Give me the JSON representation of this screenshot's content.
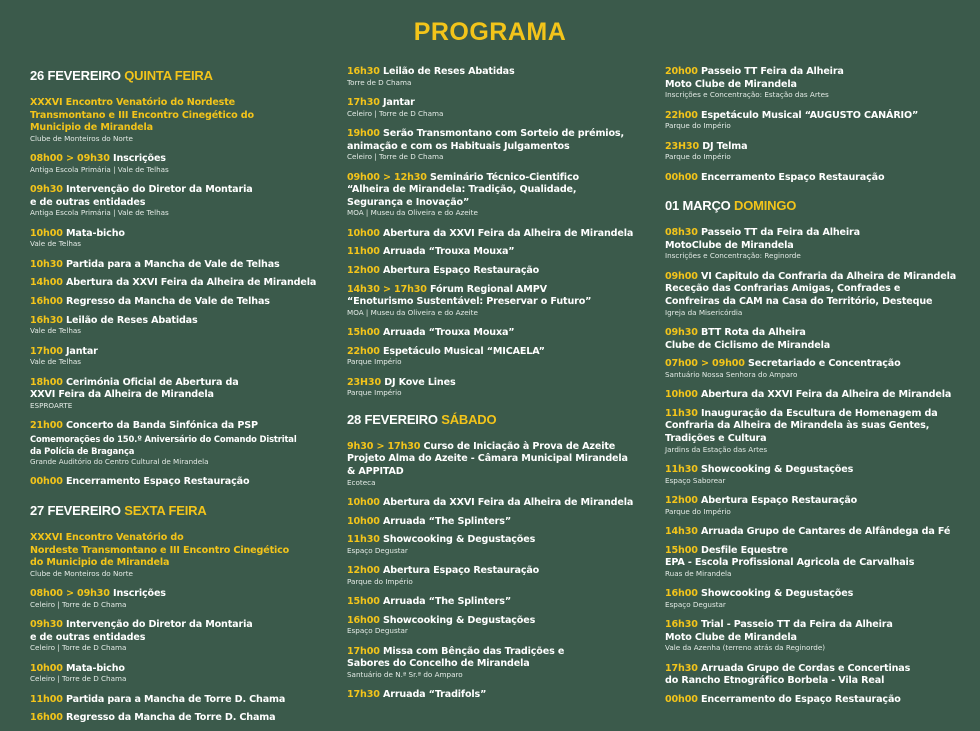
{
  "title": "PROGRAMA",
  "colors": {
    "background": "#3b5a4b",
    "accent": "#f3c41a",
    "text": "#ffffff"
  },
  "columns": [
    [
      {
        "type": "day",
        "date": "26 FEVEREIRO",
        "weekday": "QUINTA FEIRA"
      },
      {
        "highlight": true,
        "lines": [
          "XXXVI Encontro Venatório do Nordeste",
          "Transmontano e III Encontro Cinegético do",
          "Municipio de Mirandela"
        ],
        "sub": "Clube de Monteiros do Norte"
      },
      {
        "time": "08h00 > 09h30",
        "lines": [
          "Inscrições"
        ],
        "sub": "Antiga Escola Primária | Vale de Telhas"
      },
      {
        "time": "09h30",
        "lines": [
          "Intervenção do Diretor da Montaria",
          "e de outras entidades"
        ],
        "sub": "Antiga Escola Primária | Vale de Telhas"
      },
      {
        "time": "10h00",
        "lines": [
          "Mata-bicho"
        ],
        "sub": "Vale de Telhas"
      },
      {
        "time": "10h30",
        "lines": [
          "Partida para a Mancha de Vale de Telhas"
        ]
      },
      {
        "time": "14h00",
        "lines": [
          "Abertura da XXVI Feira da Alheira de Mirandela"
        ]
      },
      {
        "time": "16h00",
        "lines": [
          "Regresso da Mancha de Vale de Telhas"
        ]
      },
      {
        "time": "16h30",
        "lines": [
          "Leilão de Reses Abatidas"
        ],
        "sub": "Vale de Telhas"
      },
      {
        "time": "17h00",
        "lines": [
          "Jantar"
        ],
        "sub": "Vale de Telhas"
      },
      {
        "time": "18h00",
        "lines": [
          "Cerimónia Oficial de Abertura da",
          "XXVI Feira da Alheira de Mirandela"
        ],
        "sub": "ESPROARTE"
      },
      {
        "time": "21h00",
        "lines": [
          "Concerto da Banda Sinfónica da PSP"
        ],
        "small": [
          "Comemorações do 150.º Aniversário do Comando Distrital",
          "da Polícia de Bragança"
        ],
        "sub": "Grande Auditório do Centro Cultural de Mirandela"
      },
      {
        "time": "00h00",
        "lines": [
          "Encerramento Espaço Restauração"
        ]
      },
      {
        "type": "day",
        "date": "27 FEVEREIRO",
        "weekday": "SEXTA FEIRA"
      },
      {
        "highlight": true,
        "lines": [
          "XXXVI Encontro Venatório do",
          "Nordeste Transmontano e III Encontro Cinegético",
          "do Municipio de Mirandela"
        ],
        "sub": "Clube de Monteiros do Norte"
      },
      {
        "time": "08h00 > 09h30",
        "lines": [
          "Inscrições"
        ],
        "sub": "Celeiro | Torre de D Chama"
      },
      {
        "time": "09h30",
        "lines": [
          "Intervenção do Diretor da Montaria",
          "e de outras entidades"
        ],
        "sub": "Celeiro | Torre de D Chama"
      },
      {
        "time": "10h00",
        "lines": [
          "Mata-bicho"
        ],
        "sub": "Celeiro | Torre de D Chama"
      },
      {
        "time": "11h00",
        "lines": [
          "Partida para a Mancha de Torre D. Chama"
        ]
      },
      {
        "time": "16h00",
        "lines": [
          "Regresso da Mancha de Torre D. Chama"
        ]
      }
    ],
    [
      {
        "time": "16h30",
        "lines": [
          "Leilão de Reses Abatidas"
        ],
        "sub": "Torre de D Chama"
      },
      {
        "time": "17h30",
        "lines": [
          "Jantar"
        ],
        "sub": "Celeiro | Torre de D Chama"
      },
      {
        "time": "19h00",
        "lines": [
          "Serão Transmontano com Sorteio de prémios,",
          "animação e com os Habituais Julgamentos"
        ],
        "sub": "Celeiro | Torre de D Chama"
      },
      {
        "time": "09h00 > 12h30",
        "lines": [
          "Seminário Técnico-Cientifico",
          "“Alheira de Mirandela: Tradição, Qualidade,",
          "Segurança e Inovação”"
        ],
        "sub": "MOA | Museu da Oliveira e do Azeite"
      },
      {
        "time": "10h00",
        "lines": [
          "Abertura da XXVI Feira da Alheira de Mirandela"
        ]
      },
      {
        "time": "11h00",
        "lines": [
          "Arruada “Trouxa Mouxa”"
        ]
      },
      {
        "time": "12h00",
        "lines": [
          "Abertura Espaço Restauração"
        ]
      },
      {
        "time": "14h30 > 17h30",
        "lines": [
          "Fórum Regional AMPV",
          "“Enoturismo Sustentável: Preservar o Futuro”"
        ],
        "sub": "MOA | Museu da Oliveira e do Azeite"
      },
      {
        "time": "15h00",
        "lines": [
          "Arruada “Trouxa Mouxa”"
        ]
      },
      {
        "time": "22h00",
        "lines": [
          "Espetáculo Musical “MICAELA”"
        ],
        "sub": "Parque Império"
      },
      {
        "time": "23H30",
        "lines": [
          "DJ Kove Lines"
        ],
        "sub": "Parque Império"
      },
      {
        "type": "day",
        "date": "28 FEVEREIRO",
        "weekday": "SÁBADO"
      },
      {
        "time": "9h30 > 17h30",
        "lines": [
          "Curso de Iniciação à Prova de Azeite",
          "Projeto Alma do Azeite - Câmara Municipal Mirandela",
          "& APPITAD"
        ],
        "sub": "Ecoteca"
      },
      {
        "time": "10h00",
        "lines": [
          "Abertura da XXVI Feira da Alheira de Mirandela"
        ]
      },
      {
        "time": "10h00",
        "lines": [
          "Arruada “The Splinters”"
        ]
      },
      {
        "time": "11h30",
        "lines": [
          "Showcooking & Degustações"
        ],
        "sub": "Espaço Degustar"
      },
      {
        "time": "12h00",
        "lines": [
          "Abertura Espaço Restauração"
        ],
        "sub": "Parque do Império"
      },
      {
        "time": "15h00",
        "lines": [
          "Arruada “The Splinters”"
        ]
      },
      {
        "time": "16h00",
        "lines": [
          "Showcooking & Degustações"
        ],
        "sub": "Espaço Degustar"
      },
      {
        "time": "17h00",
        "lines": [
          "Missa com Bênção das Tradições e",
          "Sabores do Concelho de Mirandela"
        ],
        "sub": "Santuário de N.ª Sr.ª do Amparo"
      },
      {
        "time": "17h30",
        "lines": [
          "Arruada “Tradifols”"
        ]
      }
    ],
    [
      {
        "time": "20h00",
        "lines": [
          "Passeio TT Feira da Alheira",
          "Moto Clube de Mirandela"
        ],
        "sub": "Inscrições e Concentração: Estação das Artes"
      },
      {
        "time": "22h00",
        "lines": [
          "Espetáculo Musical “AUGUSTO CANÁRIO”"
        ],
        "sub": "Parque do Império"
      },
      {
        "time": "23H30",
        "lines": [
          "DJ Telma"
        ],
        "sub": "Parque do Império"
      },
      {
        "time": "00h00",
        "lines": [
          "Encerramento Espaço Restauração"
        ]
      },
      {
        "type": "day",
        "date": "01 MARÇO",
        "weekday": "DOMINGO"
      },
      {
        "time": "08h30",
        "lines": [
          "Passeio TT da Feira da Alheira",
          "MotoClube de Mirandela"
        ],
        "sub": "Inscrições e Concentração: Reginorde"
      },
      {
        "time": "09h00",
        "lines": [
          "VI Capitulo da Confraria da Alheira de Mirandela",
          "Receção das Confrarias Amigas, Confrades e",
          "Confreiras da CAM na Casa do Território, Desteque"
        ],
        "sub": "Igreja da Misericórdia"
      },
      {
        "time": "09h30",
        "lines": [
          "BTT Rota da Alheira",
          "Clube de Ciclismo de Mirandela"
        ]
      },
      {
        "time": "07h00 > 09h00",
        "lines": [
          "Secretariado e Concentração"
        ],
        "sub": "Santuário Nossa Senhora do Amparo"
      },
      {
        "time": "10h00",
        "lines": [
          "Abertura da XXVI Feira da Alheira de Mirandela"
        ]
      },
      {
        "time": "11h30",
        "lines": [
          "Inauguração da Escultura de Homenagem da",
          "Confraria da Alheira de Mirandela às suas Gentes,",
          "Tradições e Cultura"
        ],
        "sub": "Jardins da Estação das Artes"
      },
      {
        "time": "11h30",
        "lines": [
          "Showcooking & Degustações"
        ],
        "sub": "Espaço Saborear"
      },
      {
        "time": "12h00",
        "lines": [
          "Abertura Espaço Restauração"
        ],
        "sub": "Parque do Império"
      },
      {
        "time": "14h30",
        "lines": [
          "Arruada Grupo de Cantares de Alfândega da Fé"
        ]
      },
      {
        "time": "15h00",
        "lines": [
          "Desfile Equestre",
          "EPA - Escola Profissional Agricola de Carvalhais"
        ],
        "sub": "Ruas de Mirandela"
      },
      {
        "time": "16h00",
        "lines": [
          "Showcooking & Degustações"
        ],
        "sub": "Espaço Degustar"
      },
      {
        "time": "16h30",
        "lines": [
          "Trial - Passeio TT da Feira da Alheira",
          "Moto Clube de Mirandela"
        ],
        "sub": "Vale da Azenha (terreno atrás da Reginorde)"
      },
      {
        "time": "17h30",
        "lines": [
          "Arruada Grupo de Cordas e Concertinas",
          "do Rancho Etnográfico Borbela - Vila Real"
        ]
      },
      {
        "time": "00h00",
        "lines": [
          "Encerramento do Espaço Restauração"
        ]
      }
    ]
  ]
}
